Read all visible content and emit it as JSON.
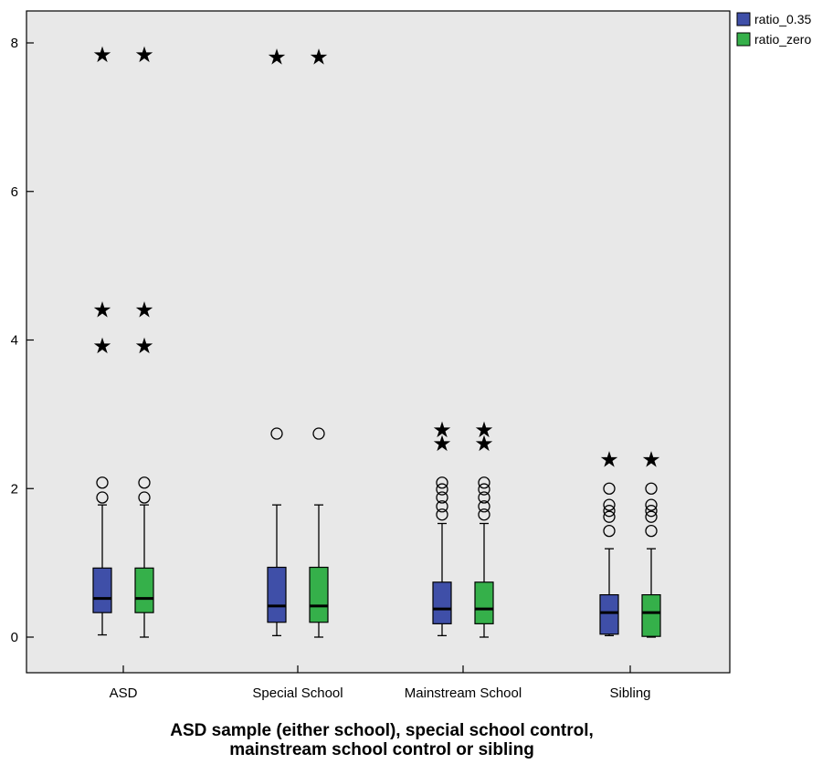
{
  "chart_data": {
    "type": "boxplot",
    "xlabel": [
      "ASD sample (either school), special school control,",
      "mainstream school control or sibling"
    ],
    "ylabel": "",
    "ylim": [
      0,
      8
    ],
    "yticks": [
      "0",
      "2",
      "4",
      "6",
      "8"
    ],
    "categories": [
      "ASD",
      "Special School",
      "Mainstream School",
      "Sibling"
    ],
    "legend_position": "top-right",
    "grid": false,
    "background_color": "#e8e8e8",
    "series": [
      {
        "name": "ratio_0.35",
        "color": "#3f4fa8",
        "boxes": [
          {
            "whisker_low": 0.03,
            "q1": 0.33,
            "median": 0.52,
            "q3": 0.93,
            "whisker_high": 1.78,
            "outliers": [
              1.88,
              2.08
            ],
            "extremes": [
              3.93,
              4.42,
              7.85
            ]
          },
          {
            "whisker_low": 0.02,
            "q1": 0.2,
            "median": 0.42,
            "q3": 0.94,
            "whisker_high": 1.78,
            "outliers": [
              2.74
            ],
            "extremes": [
              7.82
            ]
          },
          {
            "whisker_low": 0.02,
            "q1": 0.18,
            "median": 0.38,
            "q3": 0.74,
            "whisker_high": 1.53,
            "outliers": [
              1.65,
              1.76,
              1.88,
              1.99,
              2.08
            ],
            "extremes": [
              2.62,
              2.8
            ]
          },
          {
            "whisker_low": 0.02,
            "q1": 0.04,
            "median": 0.33,
            "q3": 0.57,
            "whisker_high": 1.19,
            "outliers": [
              1.43,
              1.62,
              1.7,
              1.78,
              2.0
            ],
            "extremes": [
              2.4
            ]
          }
        ]
      },
      {
        "name": "ratio_zero",
        "color": "#35b04a",
        "boxes": [
          {
            "whisker_low": 0.0,
            "q1": 0.33,
            "median": 0.52,
            "q3": 0.93,
            "whisker_high": 1.78,
            "outliers": [
              1.88,
              2.08
            ],
            "extremes": [
              3.93,
              4.42,
              7.85
            ]
          },
          {
            "whisker_low": 0.0,
            "q1": 0.2,
            "median": 0.42,
            "q3": 0.94,
            "whisker_high": 1.78,
            "outliers": [
              2.74
            ],
            "extremes": [
              7.82
            ]
          },
          {
            "whisker_low": 0.0,
            "q1": 0.18,
            "median": 0.38,
            "q3": 0.74,
            "whisker_high": 1.53,
            "outliers": [
              1.65,
              1.76,
              1.88,
              1.99,
              2.08
            ],
            "extremes": [
              2.62,
              2.8
            ]
          },
          {
            "whisker_low": 0.0,
            "q1": 0.01,
            "median": 0.33,
            "q3": 0.57,
            "whisker_high": 1.19,
            "outliers": [
              1.43,
              1.62,
              1.7,
              1.78,
              2.0
            ],
            "extremes": [
              2.4
            ]
          }
        ]
      }
    ]
  }
}
